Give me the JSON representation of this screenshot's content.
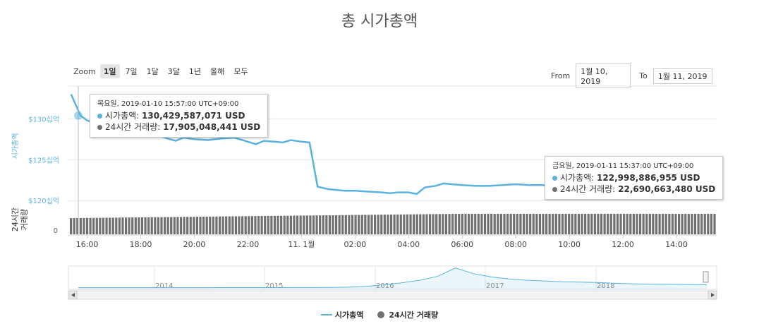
{
  "title": "총 시가총액",
  "zoom": {
    "label": "Zoom",
    "buttons": [
      "1일",
      "7일",
      "1달",
      "3달",
      "1년",
      "올해",
      "모두"
    ],
    "active": "1일"
  },
  "range": {
    "from_label": "From",
    "from": "1월 10, 2019",
    "to_label": "To",
    "to": "1월 11, 2019"
  },
  "tooltips": [
    {
      "timestamp": "목요일, 2019-01-10 15:57:00 UTC+09:00",
      "market_cap_label": "시가총액: ",
      "market_cap": "130,429,587,071 USD",
      "volume_label": "24시간 거래량: ",
      "volume": "17,905,048,441 USD"
    },
    {
      "timestamp": "금요일, 2019-01-11 15:37:00 UTC+09:00",
      "market_cap_label": "시가총액: ",
      "market_cap": "122,998,886,955 USD",
      "volume_label": "24시간 거래량: ",
      "volume": "22,690,663,480 USD"
    }
  ],
  "legend": [
    "시가총액",
    "24시간 거래량"
  ],
  "colors": {
    "market_cap": "#5bb3dd",
    "volume": "#707070",
    "navigator": "#5bb3dd"
  },
  "chart_data": [
    {
      "type": "line",
      "title": "총 시가총액",
      "ylabel": "시가총액",
      "yticks": [
        "$130십억",
        "$125십억",
        "$120십억"
      ],
      "ylim": [
        119.5,
        134
      ],
      "xticks": [
        "16:00",
        "18:00",
        "20:00",
        "22:00",
        "11. 1월",
        "02:00",
        "04:00",
        "06:00",
        "08:00",
        "10:00",
        "12:00",
        "14:00"
      ],
      "x_hours": [
        15.4,
        15.75,
        16,
        16.5,
        17,
        17.5,
        18,
        18.5,
        19,
        19.3,
        19.6,
        20,
        20.5,
        21,
        21.5,
        22,
        22.3,
        22.6,
        23,
        23.3,
        23.6,
        24,
        24.3,
        24.6,
        25,
        25.3,
        25.6,
        26,
        26.5,
        27,
        27.3,
        27.6,
        28,
        28.3,
        28.6,
        29,
        29.3,
        29.6,
        30,
        30.5,
        31,
        31.5,
        32,
        32.5,
        33,
        33.5,
        34,
        34.5,
        35,
        35.5,
        36,
        36.5,
        37,
        37.5,
        38,
        38.5,
        39,
        39.4
      ],
      "series": [
        {
          "name": "시가총액",
          "values": [
            133.0,
            130.4,
            129.8,
            129.3,
            128.9,
            128.6,
            128.3,
            128.1,
            127.6,
            127.3,
            127.7,
            127.5,
            127.4,
            127.6,
            127.7,
            127.2,
            126.9,
            127.3,
            127.2,
            127.1,
            127.4,
            127.2,
            127.1,
            121.7,
            121.4,
            121.3,
            121.2,
            121.2,
            121.1,
            121.0,
            120.9,
            121.0,
            121.0,
            120.8,
            121.6,
            121.8,
            122.1,
            122.0,
            121.9,
            121.8,
            121.8,
            121.9,
            122.0,
            121.9,
            121.9,
            121.7,
            122.0,
            121.6,
            121.9,
            122.1,
            122.0,
            122.2,
            122.3,
            122.1,
            122.4,
            122.6,
            122.9,
            122.99
          ]
        }
      ]
    },
    {
      "type": "bar",
      "ylabel": "24시간 거래량",
      "yticks": [
        "0"
      ],
      "series": [
        {
          "name": "24시간 거래량",
          "start_value": 17.9,
          "end_value": 22.69
        }
      ]
    },
    {
      "type": "area",
      "xticks": [
        "2014",
        "2015",
        "2016",
        "2017",
        "2018"
      ],
      "series": [
        {
          "name": "시가총액",
          "values": [
            10,
            10,
            10,
            10,
            10,
            11,
            12,
            12,
            13,
            14,
            15,
            15,
            16,
            17,
            20,
            30,
            60,
            120,
            200,
            300,
            450,
            780,
            560,
            430,
            350,
            300,
            270,
            240,
            230,
            210,
            180,
            160,
            150,
            140,
            130,
            123
          ]
        }
      ]
    }
  ]
}
